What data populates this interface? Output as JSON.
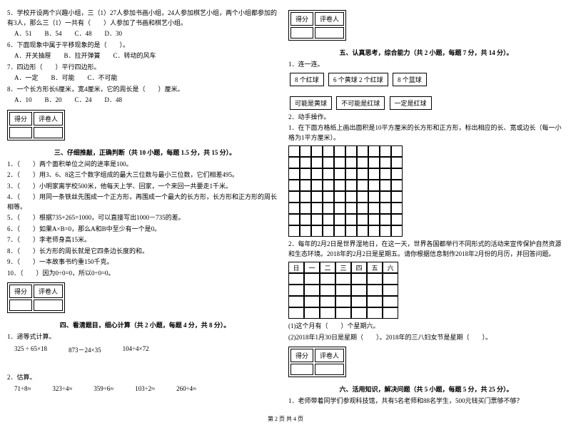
{
  "left": {
    "q5": "5．学校开设两个兴趣小组，三（1）27人参加书画小组，24人参加棋艺小组，两个小组都参加的有3人，那么三（1）一共有（　　）人参加了书画和棋艺小组。",
    "q5opts": "A．51　　B．54　　C．48　　D．30",
    "q6": "6．下面现象中属于平移现象的是（　　）。",
    "q6a": "A．开关抽屉　　B．拉开弹簧　　C．转动的风车",
    "q7": "7．四边形（　　）平行四边形。",
    "q7a": "A．一定　　B．可能　　C．不可能",
    "q8": "8．一个长方形长6厘米，宽4厘米，它的周长是（　　）厘米。",
    "q8a": "A．10　　B．20　　C．24　　D．48",
    "score_label1": "得分",
    "score_label2": "评卷人",
    "sec3": "三、仔细推敲，正确判断（共 10 小题，每题 1.5 分，共 15 分）。",
    "j1": "1．（　　）两个面积单位之间的进率是100。",
    "j2": "2．（　　）用3、6、8这三个数字组成的最大三位数与最小三位数，它们相差495。",
    "j3": "3．（　　）小明家离学校500米，他每天上学、回家，一个来回一共要走1千米。",
    "j4": "4．（　　）用同一条铁丝先围成一个正方形，再围成一个最大的长方形，长方形和正方形的周长相等。",
    "j5": "5．（　　）根据735+265=1000，可以直接写出1000－735的差。",
    "j6": "6．（　　）如果A×B=0，那么A和B中至少有一个是0。",
    "j7": "7．（　　）李老师身高15米。",
    "j8": "8．（　　）长方形的周长就是它四条边长度的和。",
    "j9": "9．（　　）一本故事书约重150千克。",
    "j10": "10．（　　）因为0÷0=0，所以0÷0=0。",
    "sec4": "四、看清题目，细心计算（共 2 小题，每题 4 分，共 8 分）。",
    "c1": "1．递等式计算。",
    "c1a": "325 ÷ 65×18",
    "c1b": "873－24×35",
    "c1c": "104÷4×72",
    "c2": "2．估算。",
    "c2a": "71÷8≈",
    "c2b": "323÷4≈",
    "c2c": "359÷6≈",
    "c2d": "103÷2≈",
    "c2e": "260÷4≈"
  },
  "right": {
    "sec5": "五、认真思考，综合能力（共 2 小题，每题 7 分，共 14 分）。",
    "t1": "1．连一连。",
    "box1": "8 个红球",
    "box2": "6 个黄球 2 个红球",
    "box3": "8 个蓝球",
    "box4": "可能是黄球",
    "box5": "不可能是红球",
    "box6": "一定是红球",
    "t2": "2．动手操作。",
    "t2a": "1．在下面方格纸上画出面积是10平方厘米的长方形和正方形，标出相应的长、宽或边长（每一小格为1平方厘米）。",
    "t2b": "2．每年的2月2日是世界湿地日，在这一天，世界各国都举行不同形式的活动来宣传保护自然资源和生态环境。2018年的2月2日是星期五。请你根据信息制作2018年2月份的月历，并回答问题。",
    "cal_h": [
      "日",
      "一",
      "二",
      "三",
      "四",
      "五",
      "六"
    ],
    "q2b1": "(1)这个月有（　　）个星期六。",
    "q2b2": "(2)2018年1月30日是星期（　　）。2018年的三八妇女节是星期（　　）。",
    "sec6": "六、活用知识，解决问题（共 5 小题，每题 5 分，共 25 分）。",
    "p1": "1．老师带着同学们参观科技馆，共有5名老师和88名学生，500元钱买门票够不够？"
  },
  "footer": "第 2 页 共 4 页"
}
